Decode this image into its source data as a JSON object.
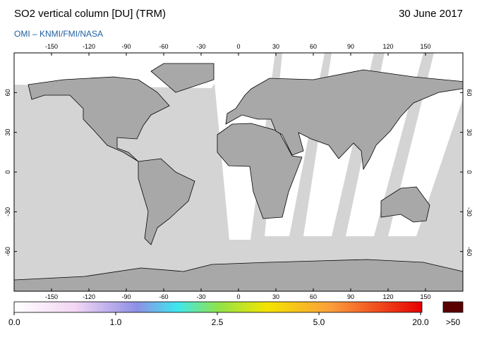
{
  "header": {
    "title": "SO2 vertical column [DU] (TRM)",
    "date": "30 June 2017",
    "source": "OMI  –  KNMI/FMI/NASA"
  },
  "map": {
    "lon_ticks": [
      -150,
      -120,
      -90,
      -60,
      -30,
      0,
      30,
      60,
      90,
      120,
      150
    ],
    "lat_ticks": [
      60,
      30,
      0,
      -30,
      -60
    ]
  },
  "colorbar": {
    "ticks": [
      {
        "value": 0,
        "label": "0.0"
      },
      {
        "value": 1,
        "label": "1.0"
      },
      {
        "value": 2.5,
        "label": "2.5"
      },
      {
        "value": 5,
        "label": "5.0"
      },
      {
        "value": 20,
        "label": "20.0"
      }
    ],
    "overflow_label": ">50"
  }
}
